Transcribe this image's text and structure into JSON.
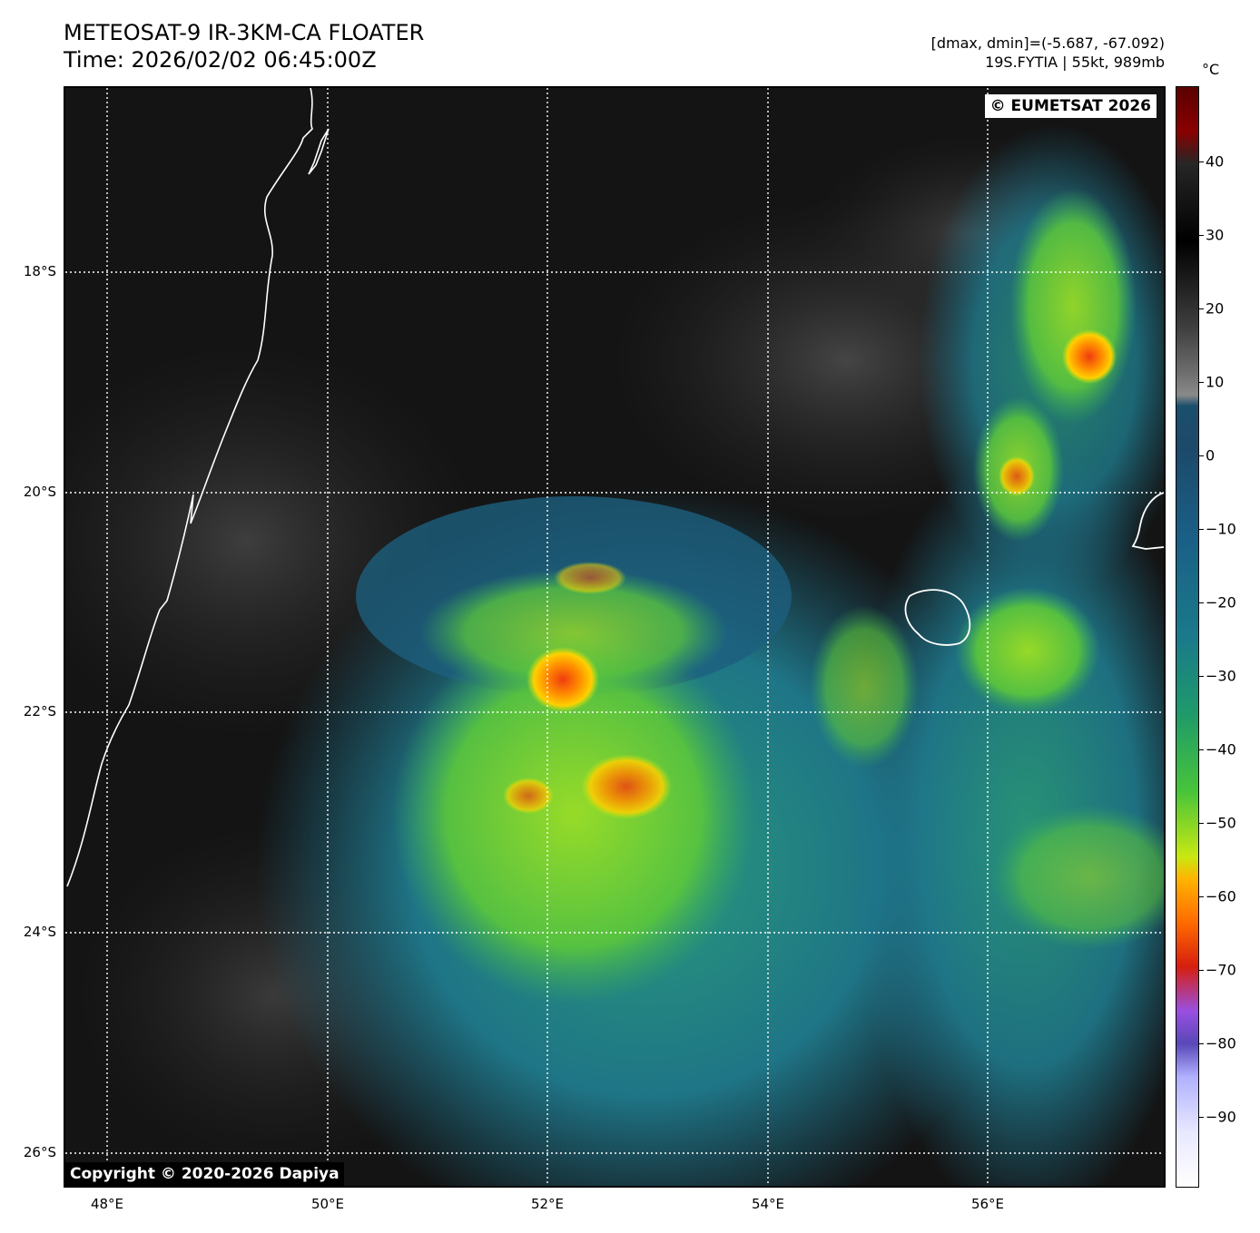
{
  "header": {
    "title": "METEOSAT-9 IR-3KM-CA FLOATER",
    "time": "Time: 2026/02/02 06:45:00Z",
    "dminmax": "[dmax, dmin]=(-5.687, -67.092)",
    "storm": "19S.FYTIA | 55kt, 989mb"
  },
  "map": {
    "lat_labels": [
      "18°S",
      "20°S",
      "22°S",
      "24°S",
      "26°S"
    ],
    "lon_labels": [
      "48°E",
      "50°E",
      "52°E",
      "54°E",
      "56°E"
    ],
    "eumetsat_credit": "© EUMETSAT 2026",
    "copyright": "Copyright © 2020-2026 Dapiya"
  },
  "colorbar": {
    "unit": "°C",
    "ticks": [
      "40",
      "30",
      "20",
      "10",
      "0",
      "−10",
      "−20",
      "−30",
      "−40",
      "−50",
      "−60",
      "−70",
      "−80",
      "−90"
    ]
  },
  "colors": {
    "cold_ring": "#1f6f8a",
    "convection": "#7fdc2a",
    "deep_convection": "#ff7a00",
    "coastline": "#ffffff"
  }
}
